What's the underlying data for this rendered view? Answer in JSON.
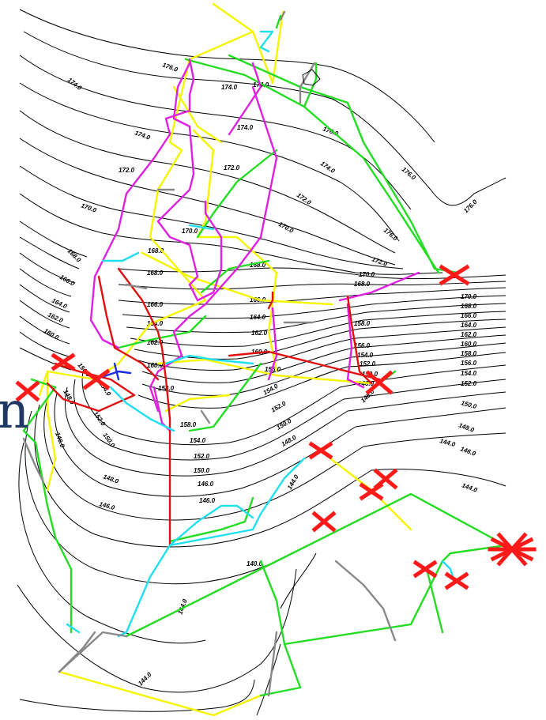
{
  "colors": {
    "contour": "#000000",
    "green": "#22dd22",
    "yellow": "#f5f500",
    "magenta": "#e020e0",
    "red": "#e01010",
    "cyan": "#20e0f0",
    "gray": "#888888",
    "blue": "#1a2ee0",
    "marker": "#ff1a1a"
  },
  "margin_glyph": "n",
  "contour_labels": [
    "176.0",
    "174.0",
    "174.0",
    "174.0",
    "176.0",
    "174.0",
    "172.0",
    "172.0",
    "176.0",
    "174.0",
    "176.0",
    "176.0",
    "170.0",
    "172.0",
    "170.0",
    "170.0",
    "174.0",
    "168.0",
    "172.0",
    "168.0",
    "168.0",
    "170.0",
    "166.0",
    "168.0",
    "168.0",
    "166.0",
    "164.0",
    "164.0",
    "166.0",
    "162.0",
    "162.0",
    "164.0",
    "160.0",
    "160.0",
    "162.0",
    "158.0",
    "160.0",
    "158.0",
    "156.0",
    "154.0",
    "156.0",
    "150.0",
    "152.0",
    "154.0",
    "154.0",
    "152.0",
    "148.0",
    "150.0",
    "146.0",
    "152.0",
    "148.0",
    "146.0",
    "150.0",
    "146.0",
    "144.0",
    "146.0",
    "148.0",
    "144.0",
    "144.0",
    "148.0",
    "146.0",
    "144.0",
    "144.0",
    "140.0",
    "158.0",
    "156.0",
    "154.0",
    "152.0",
    "150.0",
    "148.0",
    "146.0",
    "170.0",
    "168.0",
    "166.0",
    "164.0",
    "162.0",
    "160.0",
    "158.0",
    "156.0",
    "154.0",
    "152.0",
    "150.0"
  ],
  "legend": [],
  "markers": [
    "marker-1",
    "marker-2",
    "marker-3",
    "marker-4",
    "marker-5",
    "marker-6",
    "marker-7",
    "marker-8",
    "marker-9",
    "marker-10",
    "marker-11",
    "marker-12"
  ]
}
